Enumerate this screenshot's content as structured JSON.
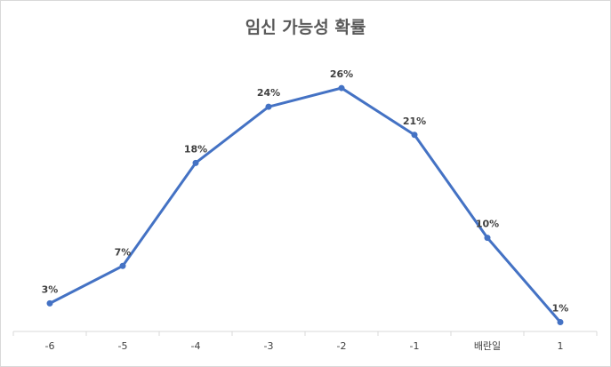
{
  "chart_data": {
    "type": "line",
    "title": "임신 가능성 확률",
    "xlabel": "",
    "ylabel": "",
    "categories": [
      "-6",
      "-5",
      "-4",
      "-3",
      "-2",
      "-1",
      "배란일",
      "1"
    ],
    "values": [
      3,
      7,
      18,
      24,
      26,
      21,
      10,
      1
    ],
    "data_labels": [
      "3%",
      "7%",
      "18%",
      "24%",
      "26%",
      "21%",
      "10%",
      "1%"
    ],
    "ylim": [
      0,
      28
    ],
    "series_color": "#4472c4",
    "grid": false,
    "legend": "none"
  }
}
